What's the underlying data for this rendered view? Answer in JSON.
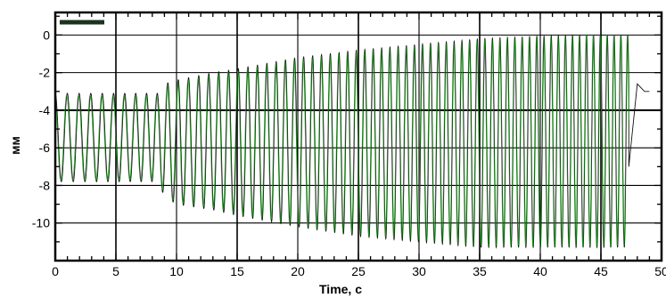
{
  "chart_data": {
    "type": "line",
    "xlabel": "Time, c",
    "ylabel": "мм",
    "xlim": [
      0,
      50
    ],
    "ylim": [
      -12,
      1.2
    ],
    "xticks": [
      0,
      5,
      10,
      15,
      20,
      25,
      30,
      35,
      40,
      45,
      50
    ],
    "yticks": [
      0,
      -2,
      -4,
      -6,
      -8,
      -10
    ],
    "grid": true,
    "legend": "top-left",
    "colors": {
      "series_a": "#111111",
      "series_b": "#1f9d1f",
      "legend_marker": "#1c3320"
    },
    "series": [
      {
        "color_key": "series_a",
        "envelope": {
          "t": [
            0,
            4.8,
            5.0,
            8.5,
            9.0,
            10,
            13,
            15,
            20,
            25,
            30,
            35,
            40,
            44,
            47.3
          ],
          "max": [
            -3.1,
            -3.1,
            -3.1,
            -3.1,
            -2.6,
            -2.4,
            -2.0,
            -1.8,
            -1.2,
            -0.8,
            -0.5,
            -0.2,
            -0.05,
            0.0,
            0.0
          ],
          "min": [
            -7.8,
            -7.8,
            -7.8,
            -7.8,
            -8.6,
            -9.0,
            -9.3,
            -9.6,
            -10.2,
            -10.7,
            -11.0,
            -11.3,
            -11.3,
            -11.3,
            -11.3
          ]
        },
        "frequency_hz": {
          "t": [
            0,
            9,
            47.3
          ],
          "f": [
            1.0,
            1.15,
            1.8
          ]
        },
        "tail": {
          "t": [
            47.3,
            48.0,
            48.6,
            49.0
          ],
          "y": [
            -7.0,
            -2.6,
            -3.0,
            -3.0
          ]
        }
      },
      {
        "color_key": "series_b",
        "envelope": {
          "t": [
            0,
            4.8,
            5.0,
            8.5,
            9.0,
            10,
            13,
            15,
            20,
            25,
            30,
            35,
            40,
            44,
            47.3
          ],
          "max": [
            -3.2,
            -3.2,
            -3.2,
            -3.2,
            -2.7,
            -2.5,
            -2.1,
            -1.9,
            -1.3,
            -0.9,
            -0.6,
            -0.3,
            -0.1,
            0.0,
            0.0
          ],
          "min": [
            -7.7,
            -7.7,
            -7.7,
            -7.7,
            -8.5,
            -8.9,
            -9.2,
            -9.5,
            -10.1,
            -10.6,
            -10.9,
            -11.2,
            -11.2,
            -11.2,
            -11.2
          ]
        },
        "frequency_hz": {
          "t": [
            0,
            9,
            47.3
          ],
          "f": [
            1.0,
            1.15,
            1.8
          ]
        }
      }
    ]
  }
}
